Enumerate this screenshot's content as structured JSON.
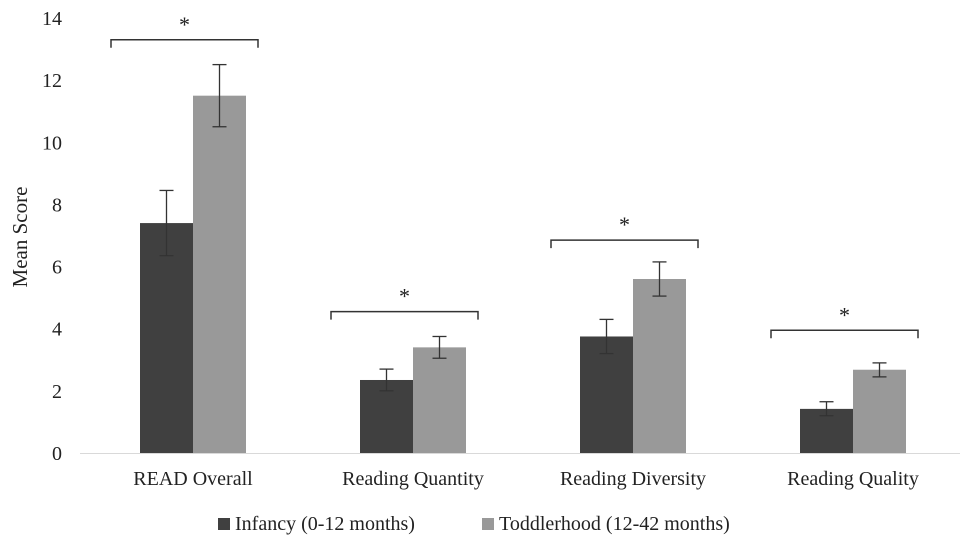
{
  "chart_data": {
    "type": "bar",
    "title": "",
    "xlabel": "",
    "ylabel": "Mean Score",
    "ylim": [
      0,
      14
    ],
    "yticks": [
      0,
      2,
      4,
      6,
      8,
      10,
      12,
      14
    ],
    "grid": false,
    "legend_position": "bottom",
    "categories": [
      "READ Overall",
      "Reading Quantity",
      "Reading Diversity",
      "Reading Quality"
    ],
    "series": [
      {
        "name": "Infancy (0-12 months)",
        "color": "#404040",
        "values": [
          7.4,
          2.35,
          3.75,
          1.42
        ],
        "error_low": [
          6.35,
          2.0,
          3.2,
          1.2
        ],
        "error_high": [
          8.45,
          2.7,
          4.3,
          1.65
        ]
      },
      {
        "name": "Toddlerhood (12-42 months)",
        "color": "#999999",
        "values": [
          11.5,
          3.4,
          5.6,
          2.68
        ],
        "error_low": [
          10.5,
          3.05,
          5.05,
          2.45
        ],
        "error_high": [
          12.5,
          3.75,
          6.15,
          2.9
        ]
      }
    ],
    "significance": [
      {
        "category": "READ Overall",
        "label": "*",
        "bracket_y": 13.3
      },
      {
        "category": "Reading Quantity",
        "label": "*",
        "bracket_y": 4.55
      },
      {
        "category": "Reading Diversity",
        "label": "*",
        "bracket_y": 6.85
      },
      {
        "category": "Reading Quality",
        "label": "*",
        "bracket_y": 3.95
      }
    ]
  }
}
